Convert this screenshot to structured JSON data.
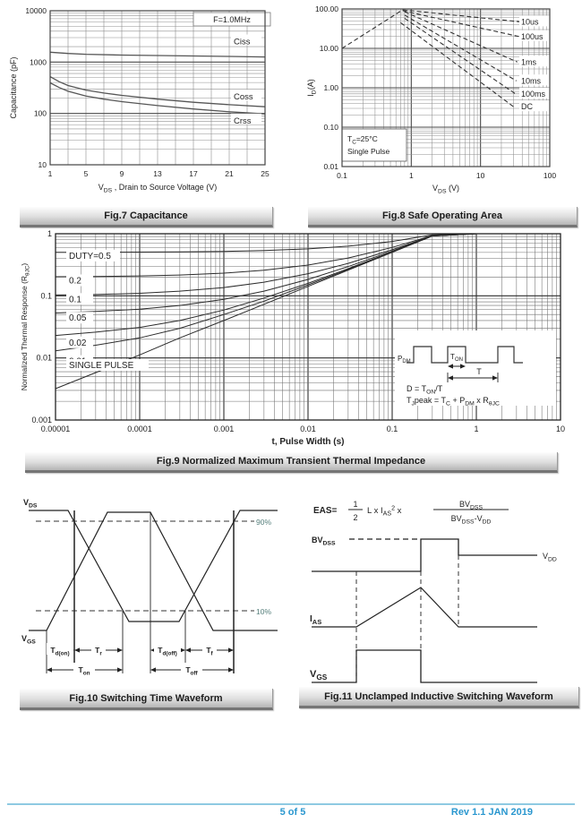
{
  "captions": {
    "fig7": "Fig.7 Capacitance",
    "fig8": "Fig.8 Safe Operating Area",
    "fig9": "Fig.9 Normalized Maximum Transient Thermal Impedance",
    "fig10": "Fig.10 Switching Time Waveform",
    "fig11": "Fig.11 Unclamped Inductive Switching Waveform"
  },
  "footer": {
    "page_number": "5 of 5",
    "revision": "Rev 1.1 JAN 2019"
  },
  "chart_data": [
    {
      "id": "fig7",
      "type": "line",
      "title": "Fig.7 Capacitance",
      "xlabel": "V_{DS} , Drain to Source Voltage (V)",
      "ylabel": "Capacitance (pF)",
      "x_scale": "linear",
      "y_scale": "log",
      "xlim": [
        1,
        25
      ],
      "ylim": [
        10,
        10000
      ],
      "x_ticks": [
        1,
        5,
        9,
        13,
        17,
        21,
        25
      ],
      "y_ticks": [
        10,
        100,
        1000,
        10000
      ],
      "annotation": "F=1.0MHz",
      "grid": true,
      "legend_position": "right-inline",
      "series": [
        {
          "name": "Ciss",
          "label_y": 2500,
          "x": [
            1,
            3,
            5,
            9,
            13,
            17,
            21,
            25
          ],
          "y": [
            1560,
            1470,
            1420,
            1370,
            1340,
            1315,
            1290,
            1260
          ]
        },
        {
          "name": "Coss",
          "label_y": 210,
          "x": [
            1,
            2,
            3,
            5,
            7,
            9,
            13,
            17,
            21,
            25
          ],
          "y": [
            520,
            415,
            350,
            285,
            250,
            225,
            190,
            165,
            148,
            135
          ]
        },
        {
          "name": "Crss",
          "label_y": 72,
          "x": [
            1,
            2,
            3,
            5,
            7,
            9,
            13,
            17,
            21,
            25
          ],
          "y": [
            395,
            320,
            270,
            218,
            190,
            170,
            142,
            122,
            108,
            98
          ]
        }
      ]
    },
    {
      "id": "fig8",
      "type": "line",
      "title": "Fig.8 Safe Operating Area",
      "xlabel": "V_{DS} (V)",
      "ylabel": "I_{D}(A)",
      "x_scale": "log",
      "y_scale": "log",
      "xlim": [
        0.1,
        100
      ],
      "ylim": [
        0.01,
        100
      ],
      "x_tick_labels": [
        "0.1",
        "1",
        "10",
        "100"
      ],
      "y_tick_labels": [
        "100.00",
        "10.00",
        "1.00",
        "0.10",
        "0.01"
      ],
      "notes": [
        "T_{C}=25°C",
        "Single Pulse"
      ],
      "line_style": "dashed",
      "grid": true,
      "series": [
        {
          "name": "",
          "x": [
            0.1,
            0.75
          ],
          "y": [
            10,
            95
          ]
        },
        {
          "name": "10us",
          "x": [
            0.75,
            38
          ],
          "y": [
            95,
            47
          ]
        },
        {
          "name": "100us",
          "x": [
            0.75,
            36
          ],
          "y": [
            90,
            20
          ]
        },
        {
          "name": "1ms",
          "x": [
            0.8,
            34
          ],
          "y": [
            85,
            4.5
          ]
        },
        {
          "name": "10ms",
          "x": [
            0.8,
            33
          ],
          "y": [
            70,
            1.5
          ]
        },
        {
          "name": "100ms",
          "x": [
            0.8,
            32
          ],
          "y": [
            58,
            0.7
          ]
        },
        {
          "name": "DC",
          "x": [
            0.7,
            30
          ],
          "y": [
            45,
            0.33
          ]
        }
      ]
    },
    {
      "id": "fig9",
      "type": "line",
      "title": "Fig.9 Normalized Maximum Transient Thermal Impedance",
      "xlabel": "t, Pulse Width (s)",
      "ylabel": "Normalized Thermal Response (R_{θJC})",
      "x_scale": "log",
      "y_scale": "log",
      "xlim": [
        1e-05,
        10
      ],
      "ylim": [
        0.001,
        1
      ],
      "x_tick_labels": [
        "0.00001",
        "0.0001",
        "0.001",
        "0.01",
        "0.1",
        "1",
        "10"
      ],
      "y_tick_labels": [
        "1",
        "0.1",
        "0.01",
        "0.001"
      ],
      "t": [
        1e-05,
        3e-05,
        0.0001,
        0.0003,
        0.001,
        0.003,
        0.01,
        0.03,
        0.1,
        0.3,
        1,
        10
      ],
      "series": [
        {
          "name": "DUTY=0.5",
          "duty": 0.5,
          "z": [
            0.502,
            0.503,
            0.506,
            0.51,
            0.52,
            0.537,
            0.571,
            0.63,
            0.751,
            0.96,
            1,
            1
          ]
        },
        {
          "name": "0.2",
          "duty": 0.2,
          "z": [
            0.203,
            0.205,
            0.209,
            0.216,
            0.232,
            0.258,
            0.313,
            0.407,
            0.602,
            0.935,
            1,
            1
          ]
        },
        {
          "name": "0.1",
          "duty": 0.1,
          "z": [
            0.103,
            0.105,
            0.11,
            0.119,
            0.136,
            0.166,
            0.227,
            0.333,
            0.552,
            0.927,
            1,
            1
          ]
        },
        {
          "name": "0.05",
          "duty": 0.05,
          "z": [
            0.053,
            0.056,
            0.061,
            0.07,
            0.088,
            0.119,
            0.184,
            0.296,
            0.527,
            0.923,
            1,
            1
          ]
        },
        {
          "name": "0.02",
          "duty": 0.02,
          "z": [
            0.023,
            0.026,
            0.031,
            0.04,
            0.059,
            0.092,
            0.159,
            0.274,
            0.512,
            0.921,
            1,
            1
          ]
        },
        {
          "name": "0.01",
          "duty": 0.01,
          "z": [
            0.013,
            0.016,
            0.021,
            0.03,
            0.05,
            0.082,
            0.15,
            0.266,
            0.507,
            0.92,
            1,
            1
          ]
        },
        {
          "name": "SINGLE PULSE",
          "duty": 0,
          "z": [
            0.0032,
            0.0058,
            0.0112,
            0.021,
            0.04,
            0.073,
            0.142,
            0.259,
            0.502,
            0.919,
            1,
            1
          ]
        }
      ],
      "inset": {
        "pdm": "P_{DM}",
        "ton": "T_{ON}",
        "t": "T",
        "eq1": "D = T_{ON}/T",
        "eq2": "T_{J}peak = T_{C} + P_{DM} x R_{θJC}"
      }
    }
  ],
  "fig10": {
    "vds": "V_{DS}",
    "vgs": "V_{GS}",
    "p90": "90%",
    "p10": "10%",
    "td_on": "T_{d(on)}",
    "tr": "T_{r}",
    "ton": "T_{on}",
    "td_off": "T_{d(off)}",
    "tf": "T_{f}",
    "toff": "T_{off}"
  },
  "fig11": {
    "eas": "EAS=",
    "num1": "1",
    "den1": "2",
    "mid": "L x I_{AS}^{2} x",
    "num2": "BV_{DSS}",
    "den2": "BV_{DSS}-V_{DD}",
    "bvdss": "BV_{DSS}",
    "vdd": "V_{DD}",
    "ias": "I_{AS}",
    "vgs": "V_{GS}"
  }
}
